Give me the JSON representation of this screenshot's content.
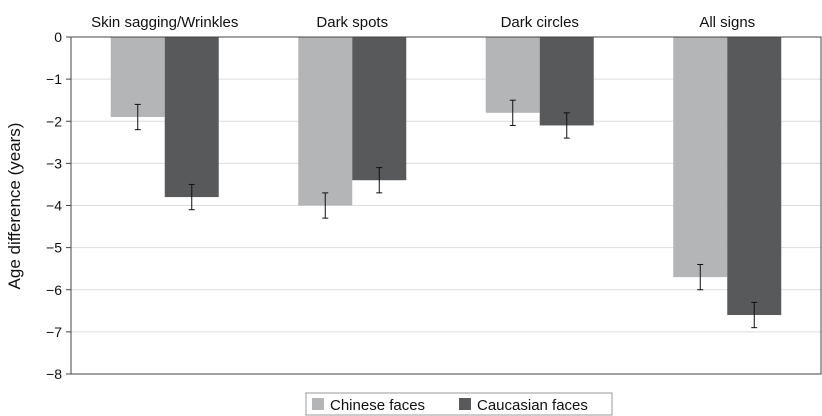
{
  "chart_data": {
    "type": "bar",
    "categories": [
      "Skin sagging/Wrinkles",
      "Dark spots",
      "Dark circles",
      "All signs"
    ],
    "series": [
      {
        "name": "Chinese faces",
        "color": "#b4b5b7",
        "values": [
          -1.9,
          -4.0,
          -1.8,
          -5.7
        ],
        "errors": [
          0.3,
          0.3,
          0.3,
          0.3
        ]
      },
      {
        "name": "Caucasian faces",
        "color": "#58595b",
        "values": [
          -3.8,
          -3.4,
          -2.1,
          -6.6
        ],
        "errors": [
          0.3,
          0.3,
          0.3,
          0.3
        ]
      }
    ],
    "title": "",
    "xlabel": "",
    "ylabel": "Age difference (years)",
    "ylim": [
      -8,
      0
    ],
    "yticks": [
      0,
      -1,
      -2,
      -3,
      -4,
      -5,
      -6,
      -7,
      -8
    ],
    "ytick_labels": [
      "0",
      "−1",
      "−2",
      "−3",
      "−4",
      "−5",
      "−6",
      "−7",
      "−8"
    ],
    "category_labels_position": "top",
    "grid": true,
    "legend_position": "bottom"
  }
}
